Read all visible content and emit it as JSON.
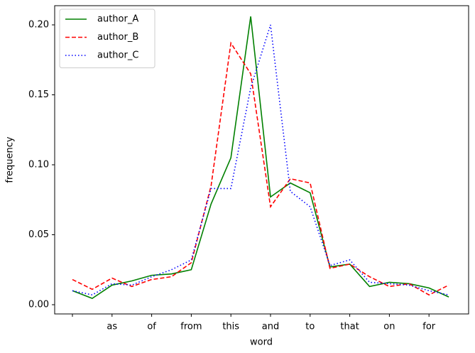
{
  "chart_data": {
    "type": "line",
    "xlabel": "word",
    "ylabel": "frequency",
    "categories": [
      null,
      null,
      "as",
      null,
      "of",
      null,
      "from",
      null,
      "this",
      null,
      "and",
      null,
      "to",
      null,
      "that",
      null,
      "on",
      null,
      "for",
      null
    ],
    "series": [
      {
        "name": "author_A",
        "color": "#008000",
        "linestyle": "solid",
        "values": [
          0.01,
          0.0045,
          0.014,
          0.017,
          0.021,
          0.022,
          0.025,
          0.072,
          0.105,
          0.206,
          0.077,
          0.087,
          0.08,
          0.027,
          0.029,
          0.013,
          0.016,
          0.015,
          0.012,
          0.0055
        ]
      },
      {
        "name": "author_B",
        "color": "#ff0000",
        "linestyle": "dashed",
        "values": [
          0.018,
          0.011,
          0.019,
          0.013,
          0.018,
          0.02,
          0.03,
          0.085,
          0.187,
          0.165,
          0.07,
          0.09,
          0.087,
          0.026,
          0.029,
          0.02,
          0.013,
          0.015,
          0.007,
          0.014
        ]
      },
      {
        "name": "author_C",
        "color": "#0000ff",
        "linestyle": "dotted",
        "values": [
          0.01,
          0.007,
          0.015,
          0.014,
          0.02,
          0.025,
          0.032,
          0.083,
          0.083,
          0.155,
          0.2,
          0.081,
          0.07,
          0.028,
          0.032,
          0.016,
          0.015,
          0.014,
          0.01,
          0.007
        ]
      }
    ],
    "ylim": [
      -0.0066,
      0.2137
    ],
    "yticks": [
      {
        "value": 0,
        "label": "0.00"
      },
      {
        "value": 0.05,
        "label": "0.05"
      },
      {
        "value": 0.1,
        "label": "0.10"
      },
      {
        "value": 0.15,
        "label": "0.15"
      },
      {
        "value": 0.2,
        "label": "0.20"
      }
    ],
    "legend": "upper left"
  }
}
